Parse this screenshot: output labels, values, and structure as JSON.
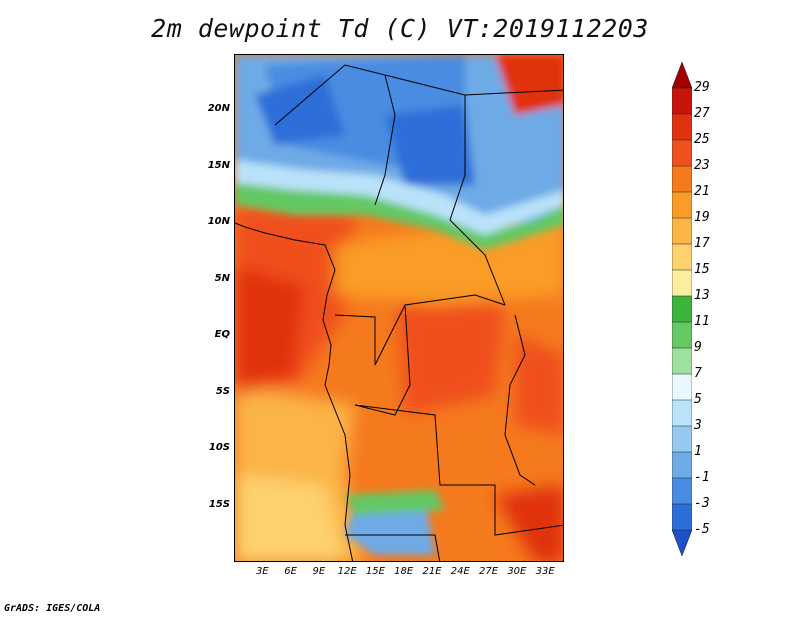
{
  "title": "2m dewpoint Td (C) VT:2019112203",
  "credit": "GrADS: IGES/COLA",
  "y_axis": {
    "labels": [
      "20N",
      "15N",
      "10N",
      "5N",
      "EQ",
      "5S",
      "10S",
      "15S"
    ],
    "degrees": [
      20,
      15,
      10,
      5,
      0,
      -5,
      -10,
      -15
    ]
  },
  "x_axis": {
    "labels": [
      "3E",
      "6E",
      "9E",
      "12E",
      "15E",
      "18E",
      "21E",
      "24E",
      "27E",
      "30E",
      "33E"
    ],
    "degrees": [
      3,
      6,
      9,
      12,
      15,
      18,
      21,
      24,
      27,
      30,
      33
    ]
  },
  "map_extent": {
    "lon": [
      0,
      35
    ],
    "lat": [
      -20,
      25
    ]
  },
  "colorbar": {
    "levels": [
      "29",
      "27",
      "25",
      "23",
      "21",
      "19",
      "17",
      "15",
      "13",
      "11",
      "9",
      "7",
      "5",
      "3",
      "1",
      "-1",
      "-3",
      "-5"
    ],
    "colors": [
      "#a00000",
      "#c8140a",
      "#e0320f",
      "#f0501e",
      "#f57a1e",
      "#fa9c28",
      "#fbb446",
      "#fdd26e",
      "#fbeea0",
      "#3cb43c",
      "#64c864",
      "#9ce29c",
      "#e8f8ff",
      "#bae2fa",
      "#96c8f0",
      "#6eaae6",
      "#4a8ce1",
      "#2d6ed8",
      "#1e50c8"
    ]
  }
}
